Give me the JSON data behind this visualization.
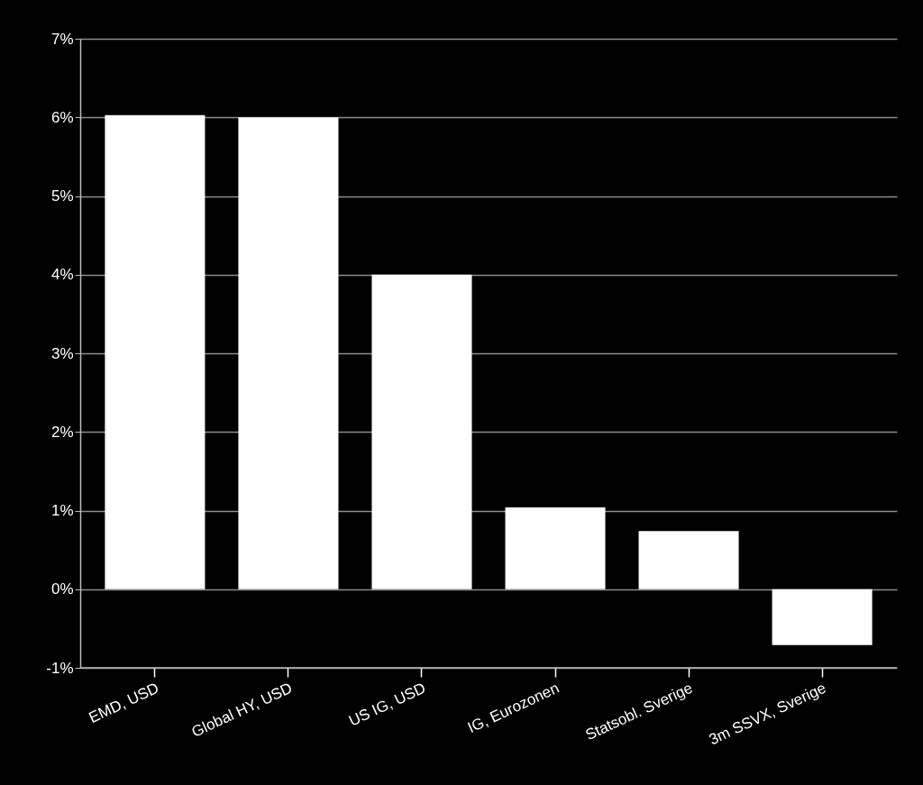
{
  "chart_data": {
    "type": "bar",
    "categories": [
      "EMD, USD",
      "Global HY, USD",
      "US IG, USD",
      "IG, Eurozonen",
      "Statsobl. Sverige",
      "3m SSVX, Sverige"
    ],
    "values": [
      6.03,
      6.0,
      4.0,
      1.04,
      0.74,
      -0.71
    ],
    "color": "#ffffff",
    "ylim": [
      -1,
      7
    ],
    "yticks": [
      {
        "value": -1,
        "label": "-1%"
      },
      {
        "value": 0,
        "label": "0%"
      },
      {
        "value": 1,
        "label": "1%"
      },
      {
        "value": 2,
        "label": "2%"
      },
      {
        "value": 3,
        "label": "3%"
      },
      {
        "value": 4,
        "label": "4%"
      },
      {
        "value": 5,
        "label": "5%"
      },
      {
        "value": 6,
        "label": "6%"
      },
      {
        "value": 7,
        "label": "7%"
      }
    ],
    "grid": "y"
  }
}
